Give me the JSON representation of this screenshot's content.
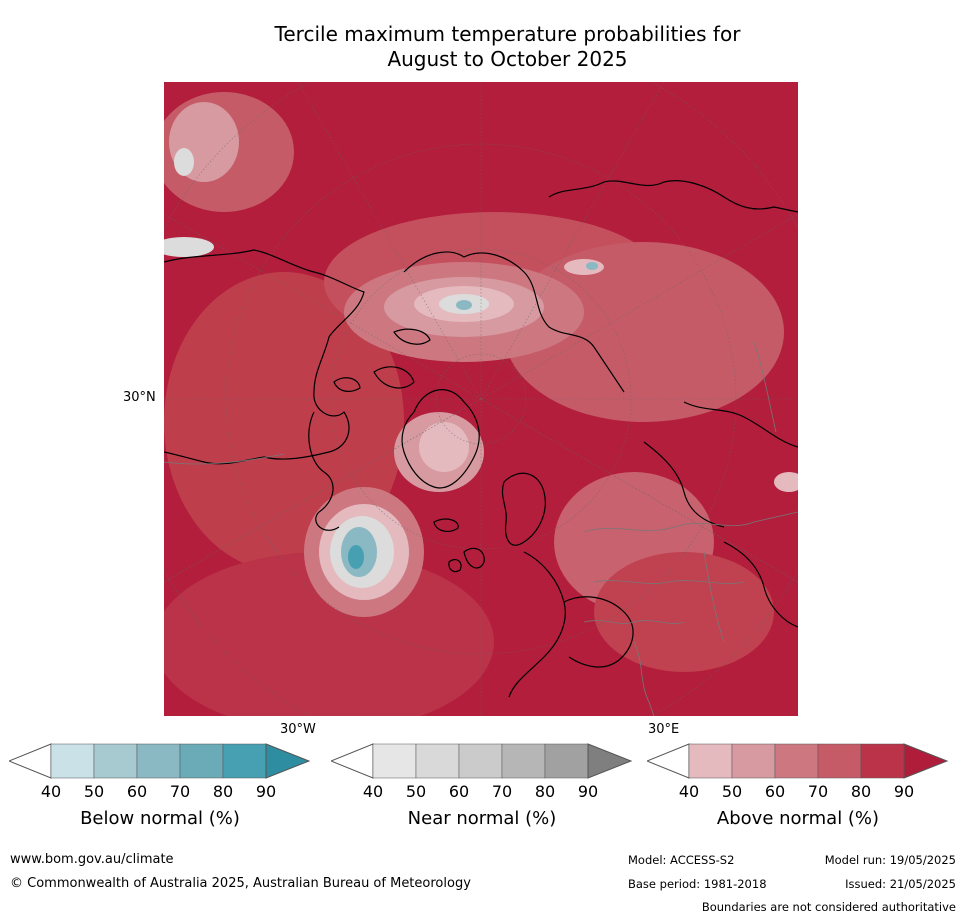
{
  "title_line1": "Tercile maximum temperature probabilities for",
  "title_line2": "August to October 2025",
  "grid_labels": {
    "lat": "30°N",
    "lon_west": "30°W",
    "lon_east": "30°E"
  },
  "colorbars": [
    {
      "label": "Below normal (%)",
      "ticks": [
        "40",
        "50",
        "60",
        "70",
        "80",
        "90"
      ],
      "colors": [
        "#ffffff",
        "#c9e1e7",
        "#a7c9d0",
        "#8ab8c3",
        "#6aabb7",
        "#47a0b1",
        "#2e8da0"
      ]
    },
    {
      "label": "Near normal (%)",
      "ticks": [
        "40",
        "50",
        "60",
        "70",
        "80",
        "90"
      ],
      "colors": [
        "#ffffff",
        "#e6e6e6",
        "#d9d9d9",
        "#cbcbcb",
        "#b6b6b6",
        "#a1a1a1",
        "#7f7f7f"
      ]
    },
    {
      "label": "Above normal (%)",
      "ticks": [
        "40",
        "50",
        "60",
        "70",
        "80",
        "90"
      ],
      "colors": [
        "#ffffff",
        "#e4babf",
        "#d79aa1",
        "#cd7881",
        "#c65b68",
        "#bb3349",
        "#b01d3a"
      ]
    }
  ],
  "footer": {
    "website": "www.bom.gov.au/climate",
    "copyright": "© Commonwealth of Australia 2025, Australian Bureau of Meteorology",
    "model": "Model: ACCESS-S2",
    "base_period": "Base period: 1981-2018",
    "model_run": "Model run: 19/05/2025",
    "issued": "Issued: 21/05/2025",
    "disclaimer": "Boundaries are not considered authoritative"
  },
  "map_colors": {
    "above_90": "#b21e3b",
    "above_80": "#bb3349",
    "above_70": "#c65b68",
    "above_60": "#cd7881",
    "above_50": "#d79aa1",
    "above_40": "#e4babf",
    "near": "#dcdcdc",
    "below_60": "#8ab8c3",
    "below_80": "#47a0b1"
  }
}
